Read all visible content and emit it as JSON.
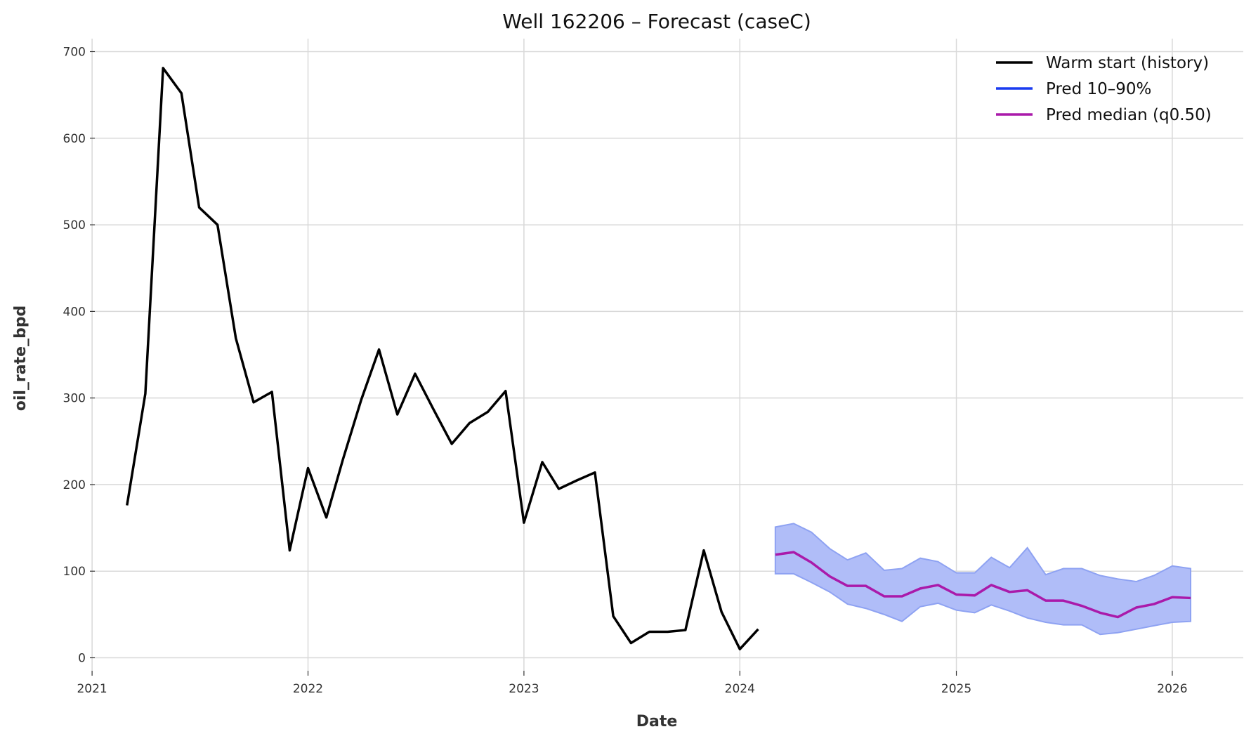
{
  "chart_data": {
    "type": "line",
    "title": "Well 162206 – Forecast (caseC)",
    "xlabel": "Date",
    "ylabel": "oil_rate_bpd",
    "xlim": [
      "2020-12-01",
      "2026-05-01"
    ],
    "ylim": [
      -15,
      715
    ],
    "x_ticks": [
      "2021",
      "2022",
      "2023",
      "2024",
      "2025",
      "2026"
    ],
    "y_ticks": [
      0,
      100,
      200,
      300,
      400,
      500,
      600,
      700
    ],
    "grid": true,
    "legend_position": "top-right",
    "colors": {
      "history": "#000000",
      "band_line": "#1a3cf0",
      "band_fill": "#b0bdf8",
      "band_edge": "#8ea2f2",
      "median": "#aa1aaa",
      "grid": "#d9d9d9"
    },
    "legend": [
      {
        "name": "Warm start (history)",
        "color": "#000000"
      },
      {
        "name": "Pred 10–90%",
        "color": "#1a3cf0"
      },
      {
        "name": "Pred median (q0.50)",
        "color": "#aa1aaa"
      }
    ],
    "series": [
      {
        "name": "Warm start (history)",
        "role": "history",
        "x": [
          "2021-03",
          "2021-04",
          "2021-05",
          "2021-06",
          "2021-07",
          "2021-08",
          "2021-09",
          "2021-10",
          "2021-11",
          "2021-12",
          "2022-01",
          "2022-02",
          "2022-03",
          "2022-04",
          "2022-05",
          "2022-06",
          "2022-07",
          "2022-08",
          "2022-09",
          "2022-10",
          "2022-11",
          "2022-12",
          "2023-01",
          "2023-02",
          "2023-03",
          "2023-04",
          "2023-05",
          "2023-06",
          "2023-07",
          "2023-08",
          "2023-09",
          "2023-10",
          "2023-11",
          "2023-12",
          "2024-01",
          "2024-02"
        ],
        "values": [
          176,
          305,
          681,
          652,
          520,
          500,
          369,
          295,
          307,
          124,
          219,
          162,
          229,
          298,
          356,
          281,
          328,
          287,
          247,
          271,
          284,
          308,
          156,
          226,
          195,
          205,
          214,
          48,
          17,
          30,
          30,
          32,
          124,
          53,
          10,
          33
        ]
      },
      {
        "name": "Pred median (q0.50)",
        "role": "median",
        "x": [
          "2024-03",
          "2024-04",
          "2024-05",
          "2024-06",
          "2024-07",
          "2024-08",
          "2024-09",
          "2024-10",
          "2024-11",
          "2024-12",
          "2025-01",
          "2025-02",
          "2025-03",
          "2025-04",
          "2025-05",
          "2025-06",
          "2025-07",
          "2025-08",
          "2025-09",
          "2025-10",
          "2025-11",
          "2025-12",
          "2026-01",
          "2026-02"
        ],
        "values": [
          119,
          122,
          110,
          94,
          83,
          83,
          71,
          71,
          80,
          84,
          73,
          72,
          84,
          76,
          78,
          66,
          66,
          60,
          52,
          47,
          58,
          62,
          70,
          69
        ]
      }
    ],
    "band": {
      "name": "Pred 10–90%",
      "x": [
        "2024-03",
        "2024-04",
        "2024-05",
        "2024-06",
        "2024-07",
        "2024-08",
        "2024-09",
        "2024-10",
        "2024-11",
        "2024-12",
        "2025-01",
        "2025-02",
        "2025-03",
        "2025-04",
        "2025-05",
        "2025-06",
        "2025-07",
        "2025-08",
        "2025-09",
        "2025-10",
        "2025-11",
        "2025-12",
        "2026-01",
        "2026-02"
      ],
      "upper": [
        151,
        155,
        145,
        126,
        113,
        121,
        101,
        103,
        115,
        111,
        98,
        98,
        116,
        104,
        127,
        96,
        103,
        103,
        95,
        91,
        88,
        95,
        106,
        103
      ],
      "lower": [
        97,
        97,
        87,
        76,
        62,
        57,
        50,
        42,
        59,
        63,
        55,
        52,
        61,
        54,
        46,
        41,
        38,
        38,
        27,
        29,
        33,
        37,
        41,
        42
      ]
    }
  }
}
